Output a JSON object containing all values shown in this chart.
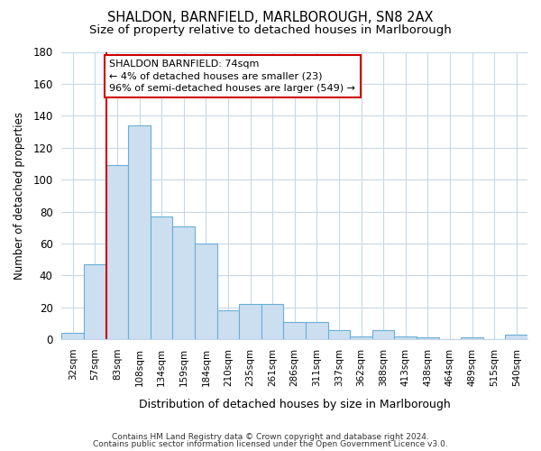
{
  "title": "SHALDON, BARNFIELD, MARLBOROUGH, SN8 2AX",
  "subtitle": "Size of property relative to detached houses in Marlborough",
  "xlabel": "Distribution of detached houses by size in Marlborough",
  "ylabel": "Number of detached properties",
  "bins": [
    "32sqm",
    "57sqm",
    "83sqm",
    "108sqm",
    "134sqm",
    "159sqm",
    "184sqm",
    "210sqm",
    "235sqm",
    "261sqm",
    "286sqm",
    "311sqm",
    "337sqm",
    "362sqm",
    "388sqm",
    "413sqm",
    "438sqm",
    "464sqm",
    "489sqm",
    "515sqm",
    "540sqm"
  ],
  "values": [
    4,
    47,
    109,
    134,
    77,
    71,
    60,
    18,
    22,
    22,
    11,
    11,
    6,
    2,
    6,
    2,
    1,
    0,
    1,
    0,
    3
  ],
  "bar_color": "#ccdff0",
  "bar_edge_color": "#6aaed6",
  "ylim": [
    0,
    180
  ],
  "yticks": [
    0,
    20,
    40,
    60,
    80,
    100,
    120,
    140,
    160,
    180
  ],
  "vline_x_index": 2,
  "annotation_title": "SHALDON BARNFIELD: 74sqm",
  "annotation_line1": "← 4% of detached houses are smaller (23)",
  "annotation_line2": "96% of semi-detached houses are larger (549) →",
  "annotation_box_color": "#ffffff",
  "annotation_box_edge_color": "#cc0000",
  "vline_color": "#cc0000",
  "footer1": "Contains HM Land Registry data © Crown copyright and database right 2024.",
  "footer2": "Contains public sector information licensed under the Open Government Licence v3.0.",
  "bg_color": "#ffffff",
  "plot_bg_color": "#ffffff",
  "grid_color": "#c8d8e8"
}
